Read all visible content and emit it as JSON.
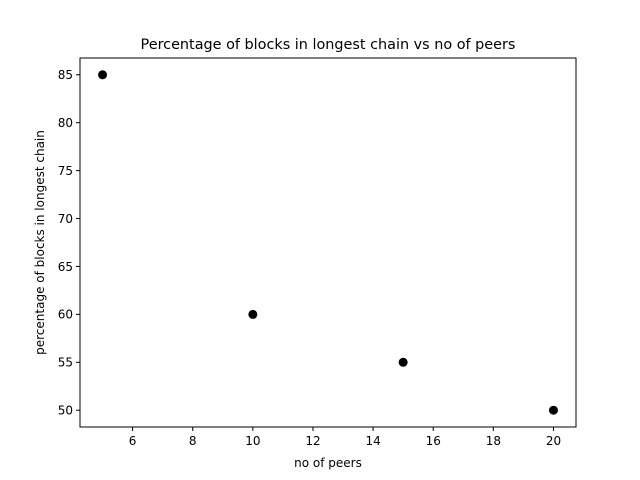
{
  "chart_data": {
    "type": "scatter",
    "title": "Percentage of blocks in longest chain vs no of peers",
    "xlabel": "no of peers",
    "ylabel": "percentage of blocks in longest chain",
    "x": [
      5,
      10,
      15,
      20
    ],
    "y": [
      85,
      60,
      55,
      50
    ],
    "xlim": [
      4.25,
      20.75
    ],
    "ylim": [
      48.25,
      86.75
    ],
    "xticks": [
      6,
      8,
      10,
      12,
      14,
      16,
      18,
      20
    ],
    "yticks": [
      50,
      55,
      60,
      65,
      70,
      75,
      80,
      85
    ],
    "marker_color": "#000000",
    "grid": false,
    "legend": "none"
  }
}
